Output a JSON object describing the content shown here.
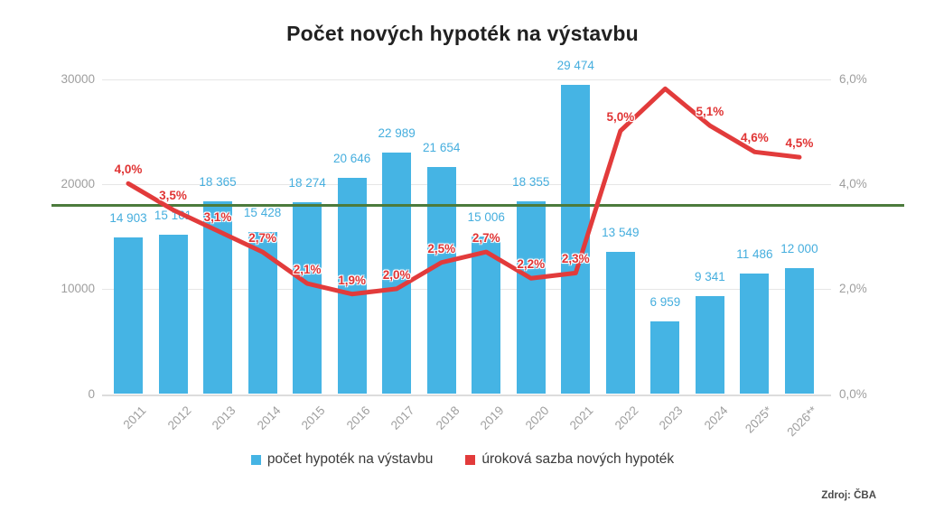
{
  "title": "Počet nových hypoték na výstavbu",
  "source": "Zdroj: ČBA",
  "colors": {
    "bar": "#45b4e4",
    "bar_label": "#45aede",
    "line": "#e23b3b",
    "line_label": "#e03434",
    "reference_line": "#4c7b3c",
    "axis_text": "#9e9e9e",
    "grid": "#e6e6e6",
    "title_text": "#212121"
  },
  "legend": [
    {
      "label": "počet hypoték na výstavbu",
      "color": "#45b4e4"
    },
    {
      "label": "úroková sazba nových hypoték",
      "color": "#e23b3b"
    }
  ],
  "chart_data": {
    "type": "bar+line",
    "title": "Počet nových hypoték na výstavbu",
    "xlabel": "",
    "ylabel_left": "",
    "ylabel_right": "",
    "grid": true,
    "legend_position": "bottom",
    "categories": [
      "2011",
      "2012",
      "2013",
      "2014",
      "2015",
      "2016",
      "2017",
      "2018",
      "2019",
      "2020",
      "2021",
      "2022",
      "2023",
      "2024",
      "2025*",
      "2026**"
    ],
    "series": [
      {
        "name": "počet hypoték na výstavbu",
        "type": "bar",
        "axis": "left",
        "color": "#45b4e4",
        "values": [
          14903,
          15161,
          18365,
          15428,
          18274,
          20646,
          22989,
          21654,
          15006,
          18355,
          29474,
          13549,
          6959,
          9341,
          11486,
          12000
        ],
        "labels": [
          "14 903",
          "15 161",
          "18 365",
          "15 428",
          "18 274",
          "20 646",
          "22 989",
          "21 654",
          "15 006",
          "18 355",
          "29 474",
          "13 549",
          "6 959",
          "9 341",
          "11 486",
          "12 000"
        ]
      },
      {
        "name": "úroková sazba nových hypoték",
        "type": "line",
        "axis": "right",
        "color": "#e23b3b",
        "values": [
          4.0,
          3.5,
          3.1,
          2.7,
          2.1,
          1.9,
          2.0,
          2.5,
          2.7,
          2.2,
          2.3,
          5.0,
          5.8,
          5.1,
          4.6,
          4.5
        ],
        "labels": [
          "4,0%",
          "3,5%",
          "3,1%",
          "2,7%",
          "2,1%",
          "1,9%",
          "2,0%",
          "2,5%",
          "2,7%",
          "2,2%",
          "2,3%",
          "5,0%",
          "",
          "5,1%",
          "4,6%",
          "4,5%"
        ]
      }
    ],
    "left_axis": {
      "ticks": [
        "0",
        "10000",
        "20000",
        "30000"
      ],
      "range": [
        0,
        30000
      ]
    },
    "right_axis": {
      "ticks": [
        "0,0%",
        "2,0%",
        "4,0%",
        "6,0%"
      ],
      "range": [
        0,
        6
      ]
    },
    "reference_line": {
      "value": 18000,
      "axis": "left",
      "color": "#4c7b3c"
    }
  }
}
